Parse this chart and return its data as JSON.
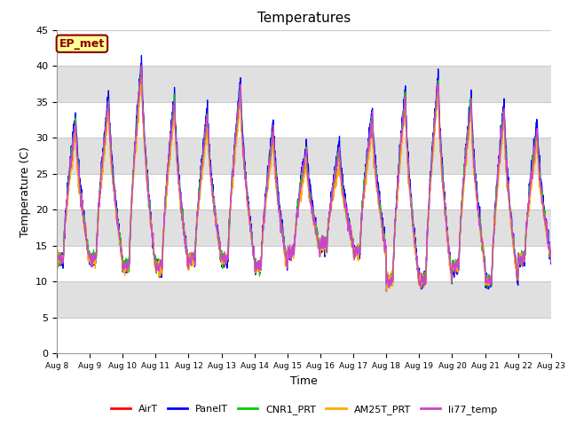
{
  "title": "Temperatures",
  "xlabel": "Time",
  "ylabel": "Temperature (C)",
  "ylim": [
    0,
    45
  ],
  "annotation_text": "EP_met",
  "annotation_color": "#8b0000",
  "annotation_bg": "#ffff99",
  "annotation_edge": "#8b0000",
  "bg_color": "#ffffff",
  "plot_bg_color": "#ffffff",
  "grid_color": "#cccccc",
  "series_colors": [
    "#ff0000",
    "#0000ff",
    "#00cc00",
    "#ffaa00",
    "#cc44cc"
  ],
  "series_names": [
    "AirT",
    "PanelT",
    "CNR1_PRT",
    "AM25T_PRT",
    "li77_temp"
  ],
  "tick_labels": [
    "Aug 8",
    "Aug 9",
    "Aug 10",
    "Aug 11",
    "Aug 12",
    "Aug 13",
    "Aug 14",
    "Aug 15",
    "Aug 16",
    "Aug 17",
    "Aug 18",
    "Aug 19",
    "Aug 20",
    "Aug 21",
    "Aug 22",
    "Aug 23"
  ],
  "band_colors": [
    "#ffffff",
    "#e0e0e0",
    "#ffffff",
    "#e0e0e0",
    "#ffffff",
    "#e0e0e0",
    "#ffffff",
    "#e0e0e0",
    "#ffffff"
  ],
  "band_ranges": [
    [
      40,
      45
    ],
    [
      35,
      40
    ],
    [
      30,
      35
    ],
    [
      25,
      30
    ],
    [
      20,
      25
    ],
    [
      15,
      20
    ],
    [
      10,
      15
    ],
    [
      5,
      10
    ],
    [
      0,
      5
    ]
  ],
  "n_days": 15,
  "pts_per_day": 144
}
